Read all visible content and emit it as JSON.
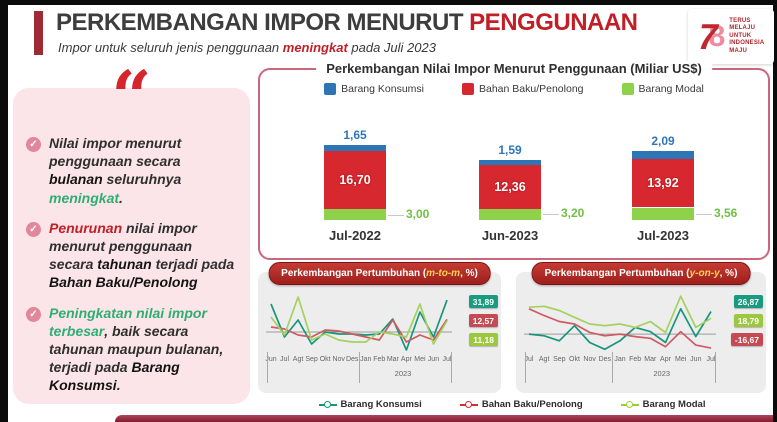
{
  "header": {
    "title_main": "PERKEMBANGAN IMPOR MENURUT ",
    "title_accent": "PENGGUNAAN",
    "subtitle_prefix": "Impor untuk seluruh jenis penggunaan ",
    "subtitle_highlight": "meningkat",
    "subtitle_suffix": " pada Juli 2023",
    "logo": {
      "digit_left": "7",
      "digit_right": "8",
      "tagline_lines": [
        "TERUS",
        "MELAJU",
        "UNTUK",
        "INDONESIA",
        "MAJU"
      ]
    }
  },
  "insights": {
    "quote_mark": "“",
    "items": [
      {
        "segments": [
          {
            "style": "n",
            "text": "Nilai impor menurut penggunaan secara "
          },
          {
            "style": "b",
            "text": "bulanan"
          },
          {
            "style": "n",
            "text": " seluruhnya "
          },
          {
            "style": "g",
            "text": "meningkat"
          },
          {
            "style": "n",
            "text": "."
          }
        ]
      },
      {
        "segments": [
          {
            "style": "r",
            "text": "Penurunan"
          },
          {
            "style": "n",
            "text": " nilai impor menurut penggunaan secara "
          },
          {
            "style": "b",
            "text": "tahunan"
          },
          {
            "style": "n",
            "text": " terjadi pada "
          },
          {
            "style": "b",
            "text": "Bahan Baku/Penolong"
          }
        ]
      },
      {
        "segments": [
          {
            "style": "g",
            "text": "Peningkatan nilai impor terbesar"
          },
          {
            "style": "n",
            "text": ", baik secara tahunan maupun bulanan, terjadi pada "
          },
          {
            "style": "b",
            "text": "Barang Konsumsi"
          },
          {
            "style": "n",
            "text": "."
          }
        ]
      }
    ]
  },
  "colors": {
    "accent_red": "#c11f27",
    "panel_pink": "#fbe5e9",
    "green_text": "#2fae74",
    "bar_blue": "#2e75b6",
    "bar_red": "#d7282f",
    "bar_green": "#8ed14a",
    "line_teal": "#17967c",
    "line_red": "#d05a63",
    "line_green": "#a5d05e",
    "footer_maroon": "#8c2030"
  },
  "chart_data": [
    {
      "type": "bar",
      "stacked": true,
      "title": "Perkembangan Nilai Impor Menurut Penggunaan (Miliar US$)",
      "categories": [
        "Jul-2022",
        "Jun-2023",
        "Jul-2023"
      ],
      "legend_position": "top",
      "series": [
        {
          "name": "Barang Konsumsi",
          "color": "#2e75b6",
          "values": [
            1.65,
            1.59,
            2.09
          ],
          "labels": [
            "1,65",
            "1,59",
            "2,09"
          ]
        },
        {
          "name": "Bahan Baku/Penolong",
          "color": "#d7282f",
          "values": [
            16.7,
            12.36,
            13.92
          ],
          "labels": [
            "16,70",
            "12,36",
            "13,92"
          ]
        },
        {
          "name": "Barang Modal",
          "color": "#8ed14a",
          "values": [
            3.0,
            3.2,
            3.56
          ],
          "labels": [
            "3,00",
            "3,20",
            "3,56"
          ]
        }
      ]
    },
    {
      "type": "line",
      "title": "Perkembangan Pertumbuhan (m-to-m, %)",
      "pill_prefix": "Perkembangan Pertumbuhan (",
      "pill_accent": "m-to-m",
      "pill_suffix": ", %)",
      "categories": [
        "Jun",
        "Jul",
        "Agt",
        "Sep",
        "Okt",
        "Nov",
        "Des",
        "Jan",
        "Feb",
        "Mar",
        "Apr",
        "Mei",
        "Jun",
        "Jul"
      ],
      "group_split": 7,
      "group_label": "2023",
      "ylim": [
        -24,
        40
      ],
      "series": [
        {
          "name": "Barang Konsumsi",
          "color": "#17967c",
          "values": [
            28,
            -5,
            12,
            -12,
            0,
            -2,
            -2,
            -3,
            -2,
            13,
            -18,
            20,
            -5,
            31.89
          ]
        },
        {
          "name": "Bahan Baku/Penolong",
          "color": "#d05a63",
          "values": [
            5,
            3,
            -3,
            -5,
            2,
            1,
            -2,
            -5,
            -8,
            12,
            -10,
            -3,
            -8,
            12.57
          ]
        },
        {
          "name": "Barang Modal",
          "color": "#a5d05e",
          "values": [
            15,
            -3,
            35,
            -8,
            -2,
            -8,
            -10,
            -10,
            0,
            -2,
            -5,
            28,
            -12,
            11.18
          ]
        }
      ],
      "end_labels": [
        {
          "text": "31,89",
          "color": "#1a9b80"
        },
        {
          "text": "12,57",
          "color": "#c44a54"
        },
        {
          "text": "11,18",
          "color": "#9dc740"
        }
      ]
    },
    {
      "type": "line",
      "title": "Perkembangan Pertumbuhan (y-on-y, %)",
      "pill_prefix": "Perkembangan Pertumbuhan (",
      "pill_accent": "y-on-y",
      "pill_suffix": ", %)",
      "categories": [
        "Jul",
        "Agt",
        "Sep",
        "Okt",
        "Nov",
        "Des",
        "Jan",
        "Feb",
        "Mar",
        "Apr",
        "Mei",
        "Jun",
        "Jul"
      ],
      "group_split": 6,
      "group_label": "2023",
      "ylim": [
        -26,
        50
      ],
      "series": [
        {
          "name": "Barang Konsumsi",
          "color": "#17967c",
          "values": [
            0,
            -2,
            -8,
            10,
            -10,
            -18,
            -8,
            8,
            3,
            -10,
            30,
            -3,
            26.87
          ]
        },
        {
          "name": "Bahan Baku/Penolong",
          "color": "#d05a63",
          "values": [
            30,
            22,
            15,
            12,
            2,
            -2,
            0,
            -3,
            -5,
            -15,
            3,
            -13,
            -16.67
          ]
        },
        {
          "name": "Barang Modal",
          "color": "#a5d05e",
          "values": [
            32,
            33,
            28,
            20,
            12,
            10,
            12,
            8,
            15,
            2,
            45,
            8,
            18.79
          ]
        }
      ],
      "end_labels": [
        {
          "text": "26,87",
          "color": "#1a9b80"
        },
        {
          "text": "18,79",
          "color": "#9dc740"
        },
        {
          "text": "-16,67",
          "color": "#c44a54"
        }
      ]
    }
  ],
  "bottom_legend": [
    {
      "label": "Barang Konsumsi",
      "color": "#17967c"
    },
    {
      "label": "Bahan Baku/Penolong",
      "color": "#d02f34"
    },
    {
      "label": "Barang Modal",
      "color": "#9ccb3b"
    }
  ]
}
